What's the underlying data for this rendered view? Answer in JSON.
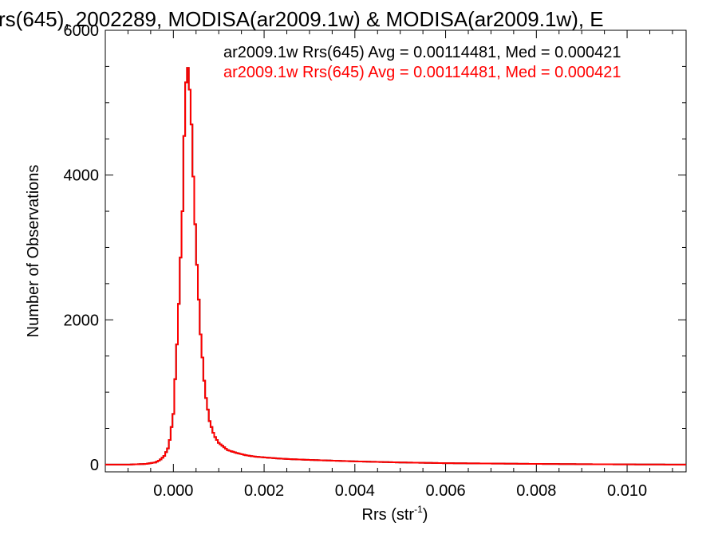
{
  "chart_data": {
    "type": "line",
    "title": "rs(645), 2002289, MODISA(ar2009.1w) & MODISA(ar2009.1w), E",
    "xlabel": "Rrs (str",
    "xlabel_exponent": "-1",
    "xlabel_close": ")",
    "ylabel": "Number of Observations",
    "xlim": [
      -0.0015,
      0.0113
    ],
    "ylim": [
      -100,
      6000
    ],
    "x_ticks": [
      0.0,
      0.002,
      0.004,
      0.006,
      0.008,
      0.01
    ],
    "x_tick_labels": [
      "0.000",
      "0.002",
      "0.004",
      "0.006",
      "0.008",
      "0.010"
    ],
    "y_ticks": [
      0,
      2000,
      4000,
      6000
    ],
    "y_tick_labels": [
      "0",
      "2000",
      "4000",
      "6000"
    ],
    "grid": false,
    "legend_position": "top-right",
    "annotations": [
      {
        "text": "ar2009.1w Rrs(645) Avg = 0.00114481, Med = 0.000421",
        "color": "#000000"
      },
      {
        "text": "ar2009.1w Rrs(645) Avg = 0.00114481, Med = 0.000421",
        "color": "#ff0000"
      }
    ],
    "series": [
      {
        "color": "#000000",
        "x": [
          -0.0015,
          -0.001,
          -0.0006,
          -0.0004,
          -0.0003,
          -0.0002,
          -0.0001,
          0.0,
          0.0001,
          0.0002,
          0.00025,
          0.0003,
          0.00035,
          0.0004,
          0.00045,
          0.0005,
          0.0006,
          0.0007,
          0.0008,
          0.0009,
          0.001,
          0.0012,
          0.0014,
          0.0016,
          0.0018,
          0.002,
          0.0023,
          0.0026,
          0.003,
          0.0035,
          0.004,
          0.005,
          0.006,
          0.007,
          0.008,
          0.009,
          0.01,
          0.0113
        ],
        "values": [
          0,
          0,
          10,
          30,
          60,
          120,
          250,
          700,
          1900,
          3500,
          4800,
          5600,
          5300,
          4700,
          3800,
          3000,
          1800,
          1000,
          600,
          400,
          300,
          200,
          160,
          130,
          110,
          100,
          85,
          75,
          65,
          55,
          45,
          30,
          20,
          15,
          10,
          6,
          3,
          0
        ]
      },
      {
        "color": "#ff0000",
        "x": [
          -0.0015,
          -0.001,
          -0.0006,
          -0.0004,
          -0.0003,
          -0.0002,
          -0.0001,
          0.0,
          0.0001,
          0.0002,
          0.00025,
          0.0003,
          0.00035,
          0.0004,
          0.00045,
          0.0005,
          0.0006,
          0.0007,
          0.0008,
          0.0009,
          0.001,
          0.0012,
          0.0014,
          0.0016,
          0.0018,
          0.002,
          0.0023,
          0.0026,
          0.003,
          0.0035,
          0.004,
          0.005,
          0.006,
          0.007,
          0.008,
          0.009,
          0.01,
          0.0113
        ],
        "values": [
          0,
          0,
          10,
          30,
          60,
          120,
          250,
          700,
          1900,
          3500,
          4800,
          5600,
          5300,
          4700,
          3800,
          3000,
          1800,
          1000,
          600,
          400,
          300,
          200,
          160,
          130,
          110,
          100,
          85,
          75,
          65,
          55,
          45,
          30,
          20,
          15,
          10,
          6,
          3,
          0
        ]
      }
    ]
  }
}
